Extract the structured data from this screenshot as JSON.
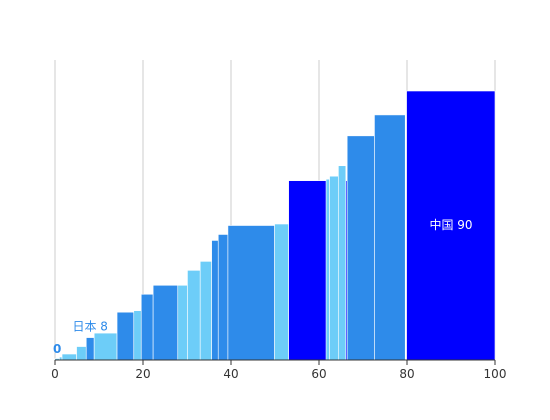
{
  "chart_data": {
    "type": "bar",
    "title": "",
    "xlabel": "",
    "ylabel": "",
    "xlim": [
      0,
      100
    ],
    "ylim": [
      0,
      90
    ],
    "grid": true,
    "x_ticks": [
      0,
      20,
      40,
      60,
      80,
      100
    ],
    "colors": {
      "light": "#6dcdf8",
      "medium": "#2e8bea",
      "dark": "#0000ff",
      "grid": "#cccccc",
      "label_light": "#2e8bea",
      "label_dark": "#ffffff"
    },
    "series": [
      {
        "values": [
          {
            "x0": 0.0,
            "x1": 1.0,
            "value": 0.5,
            "color": "light"
          },
          {
            "x0": 1.0,
            "x1": 1.6,
            "value": 1.0,
            "color": "light"
          },
          {
            "x0": 1.6,
            "x1": 4.9,
            "value": 2.0,
            "color": "light"
          },
          {
            "x0": 4.9,
            "x1": 7.1,
            "value": 4.5,
            "color": "light"
          },
          {
            "x0": 7.1,
            "x1": 8.9,
            "value": 7.5,
            "color": "medium"
          },
          {
            "x0": 8.9,
            "x1": 14.1,
            "value": 9.0,
            "color": "light"
          },
          {
            "x0": 14.1,
            "x1": 17.9,
            "value": 16.0,
            "color": "medium"
          },
          {
            "x0": 17.9,
            "x1": 19.6,
            "value": 16.5,
            "color": "light"
          },
          {
            "x0": 19.6,
            "x1": 22.3,
            "value": 22.0,
            "color": "medium"
          },
          {
            "x0": 22.3,
            "x1": 27.9,
            "value": 25.0,
            "color": "medium"
          },
          {
            "x0": 27.9,
            "x1": 30.1,
            "value": 25.0,
            "color": "light"
          },
          {
            "x0": 30.1,
            "x1": 33.0,
            "value": 30.0,
            "color": "light"
          },
          {
            "x0": 33.0,
            "x1": 35.6,
            "value": 33.0,
            "color": "light"
          },
          {
            "x0": 35.6,
            "x1": 37.1,
            "value": 40.0,
            "color": "medium"
          },
          {
            "x0": 37.1,
            "x1": 39.3,
            "value": 42.0,
            "color": "medium"
          },
          {
            "x0": 39.3,
            "x1": 49.9,
            "value": 45.0,
            "color": "medium"
          },
          {
            "x0": 49.9,
            "x1": 53.1,
            "value": 45.5,
            "color": "light"
          },
          {
            "x0": 53.1,
            "x1": 66.4,
            "value": 60.0,
            "color": "dark"
          },
          {
            "x0": 61.6,
            "x1": 62.4,
            "value": 60.5,
            "color": "light"
          },
          {
            "x0": 62.4,
            "x1": 64.4,
            "value": 61.5,
            "color": "light"
          },
          {
            "x0": 64.4,
            "x1": 66.1,
            "value": 65.0,
            "color": "light"
          },
          {
            "x0": 66.4,
            "x1": 72.6,
            "value": 75.0,
            "color": "medium"
          },
          {
            "x0": 72.6,
            "x1": 79.6,
            "value": 82.0,
            "color": "medium"
          },
          {
            "x0": 79.9,
            "x1": 100.0,
            "value": 90.0,
            "color": "dark"
          }
        ]
      }
    ],
    "annotations": [
      {
        "text": "0",
        "x": 0.5,
        "y": 3.5,
        "color": "label_light",
        "bold": true
      },
      {
        "text": "日本 8",
        "x": 8.0,
        "y": 11.0,
        "color": "label_light",
        "bold": false
      },
      {
        "text": "中国 90",
        "x": 90.0,
        "y": 45.0,
        "color": "label_dark",
        "bold": false
      }
    ]
  }
}
